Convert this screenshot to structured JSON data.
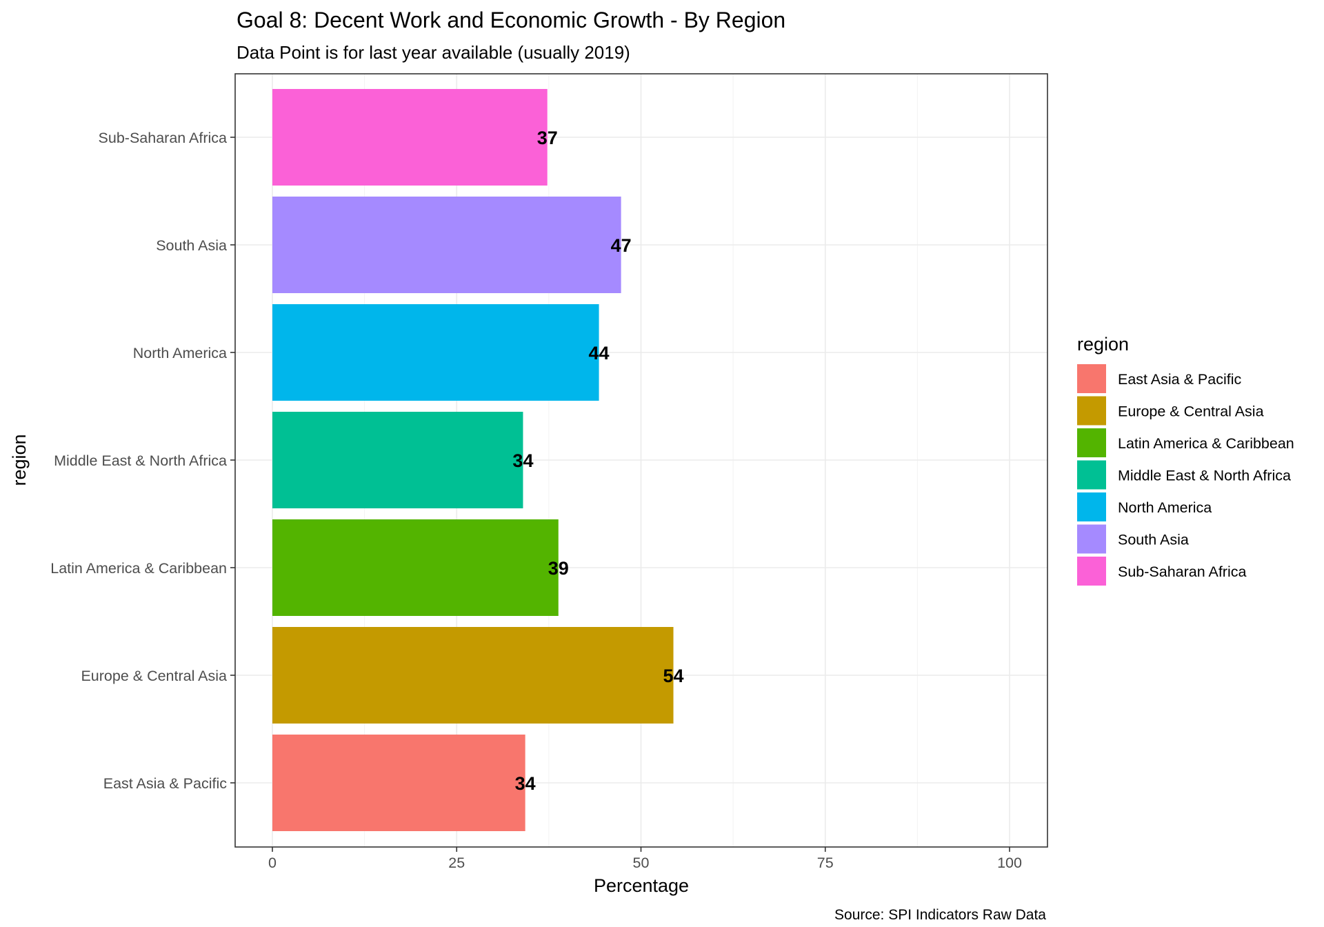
{
  "chart_data": {
    "type": "bar",
    "orientation": "horizontal",
    "title": "Goal 8: Decent Work and Economic Growth - By Region",
    "subtitle": "Data Point is for last year available (usually 2019)",
    "xlabel": "Percentage",
    "ylabel": "region",
    "caption": "Source: SPI Indicators Raw Data",
    "xlim": [
      0,
      100
    ],
    "xticks": [
      0,
      25,
      50,
      75,
      100
    ],
    "grid": true,
    "legend": {
      "title": "region",
      "placement": "right",
      "entries": [
        {
          "label": "East Asia & Pacific",
          "color": "#F8766D"
        },
        {
          "label": "Europe & Central Asia",
          "color": "#C49A00"
        },
        {
          "label": "Latin America & Caribbean",
          "color": "#53B400"
        },
        {
          "label": "Middle East & North Africa",
          "color": "#00C094"
        },
        {
          "label": "North America",
          "color": "#00B6EB"
        },
        {
          "label": "South Asia",
          "color": "#A58AFF"
        },
        {
          "label": "Sub-Saharan Africa",
          "color": "#FB61D7"
        }
      ]
    },
    "categories": [
      "East Asia & Pacific",
      "Europe & Central Asia",
      "Latin America & Caribbean",
      "Middle East & North Africa",
      "North America",
      "South Asia",
      "Sub-Saharan Africa"
    ],
    "values": [
      34.3,
      54.4,
      38.8,
      34,
      44.3,
      47.3,
      37.3
    ],
    "value_labels": [
      "34",
      "54",
      "39",
      "34",
      "44",
      "47",
      "37"
    ],
    "colors": [
      "#F8766D",
      "#C49A00",
      "#53B400",
      "#00C094",
      "#00B6EB",
      "#A58AFF",
      "#FB61D7"
    ]
  }
}
